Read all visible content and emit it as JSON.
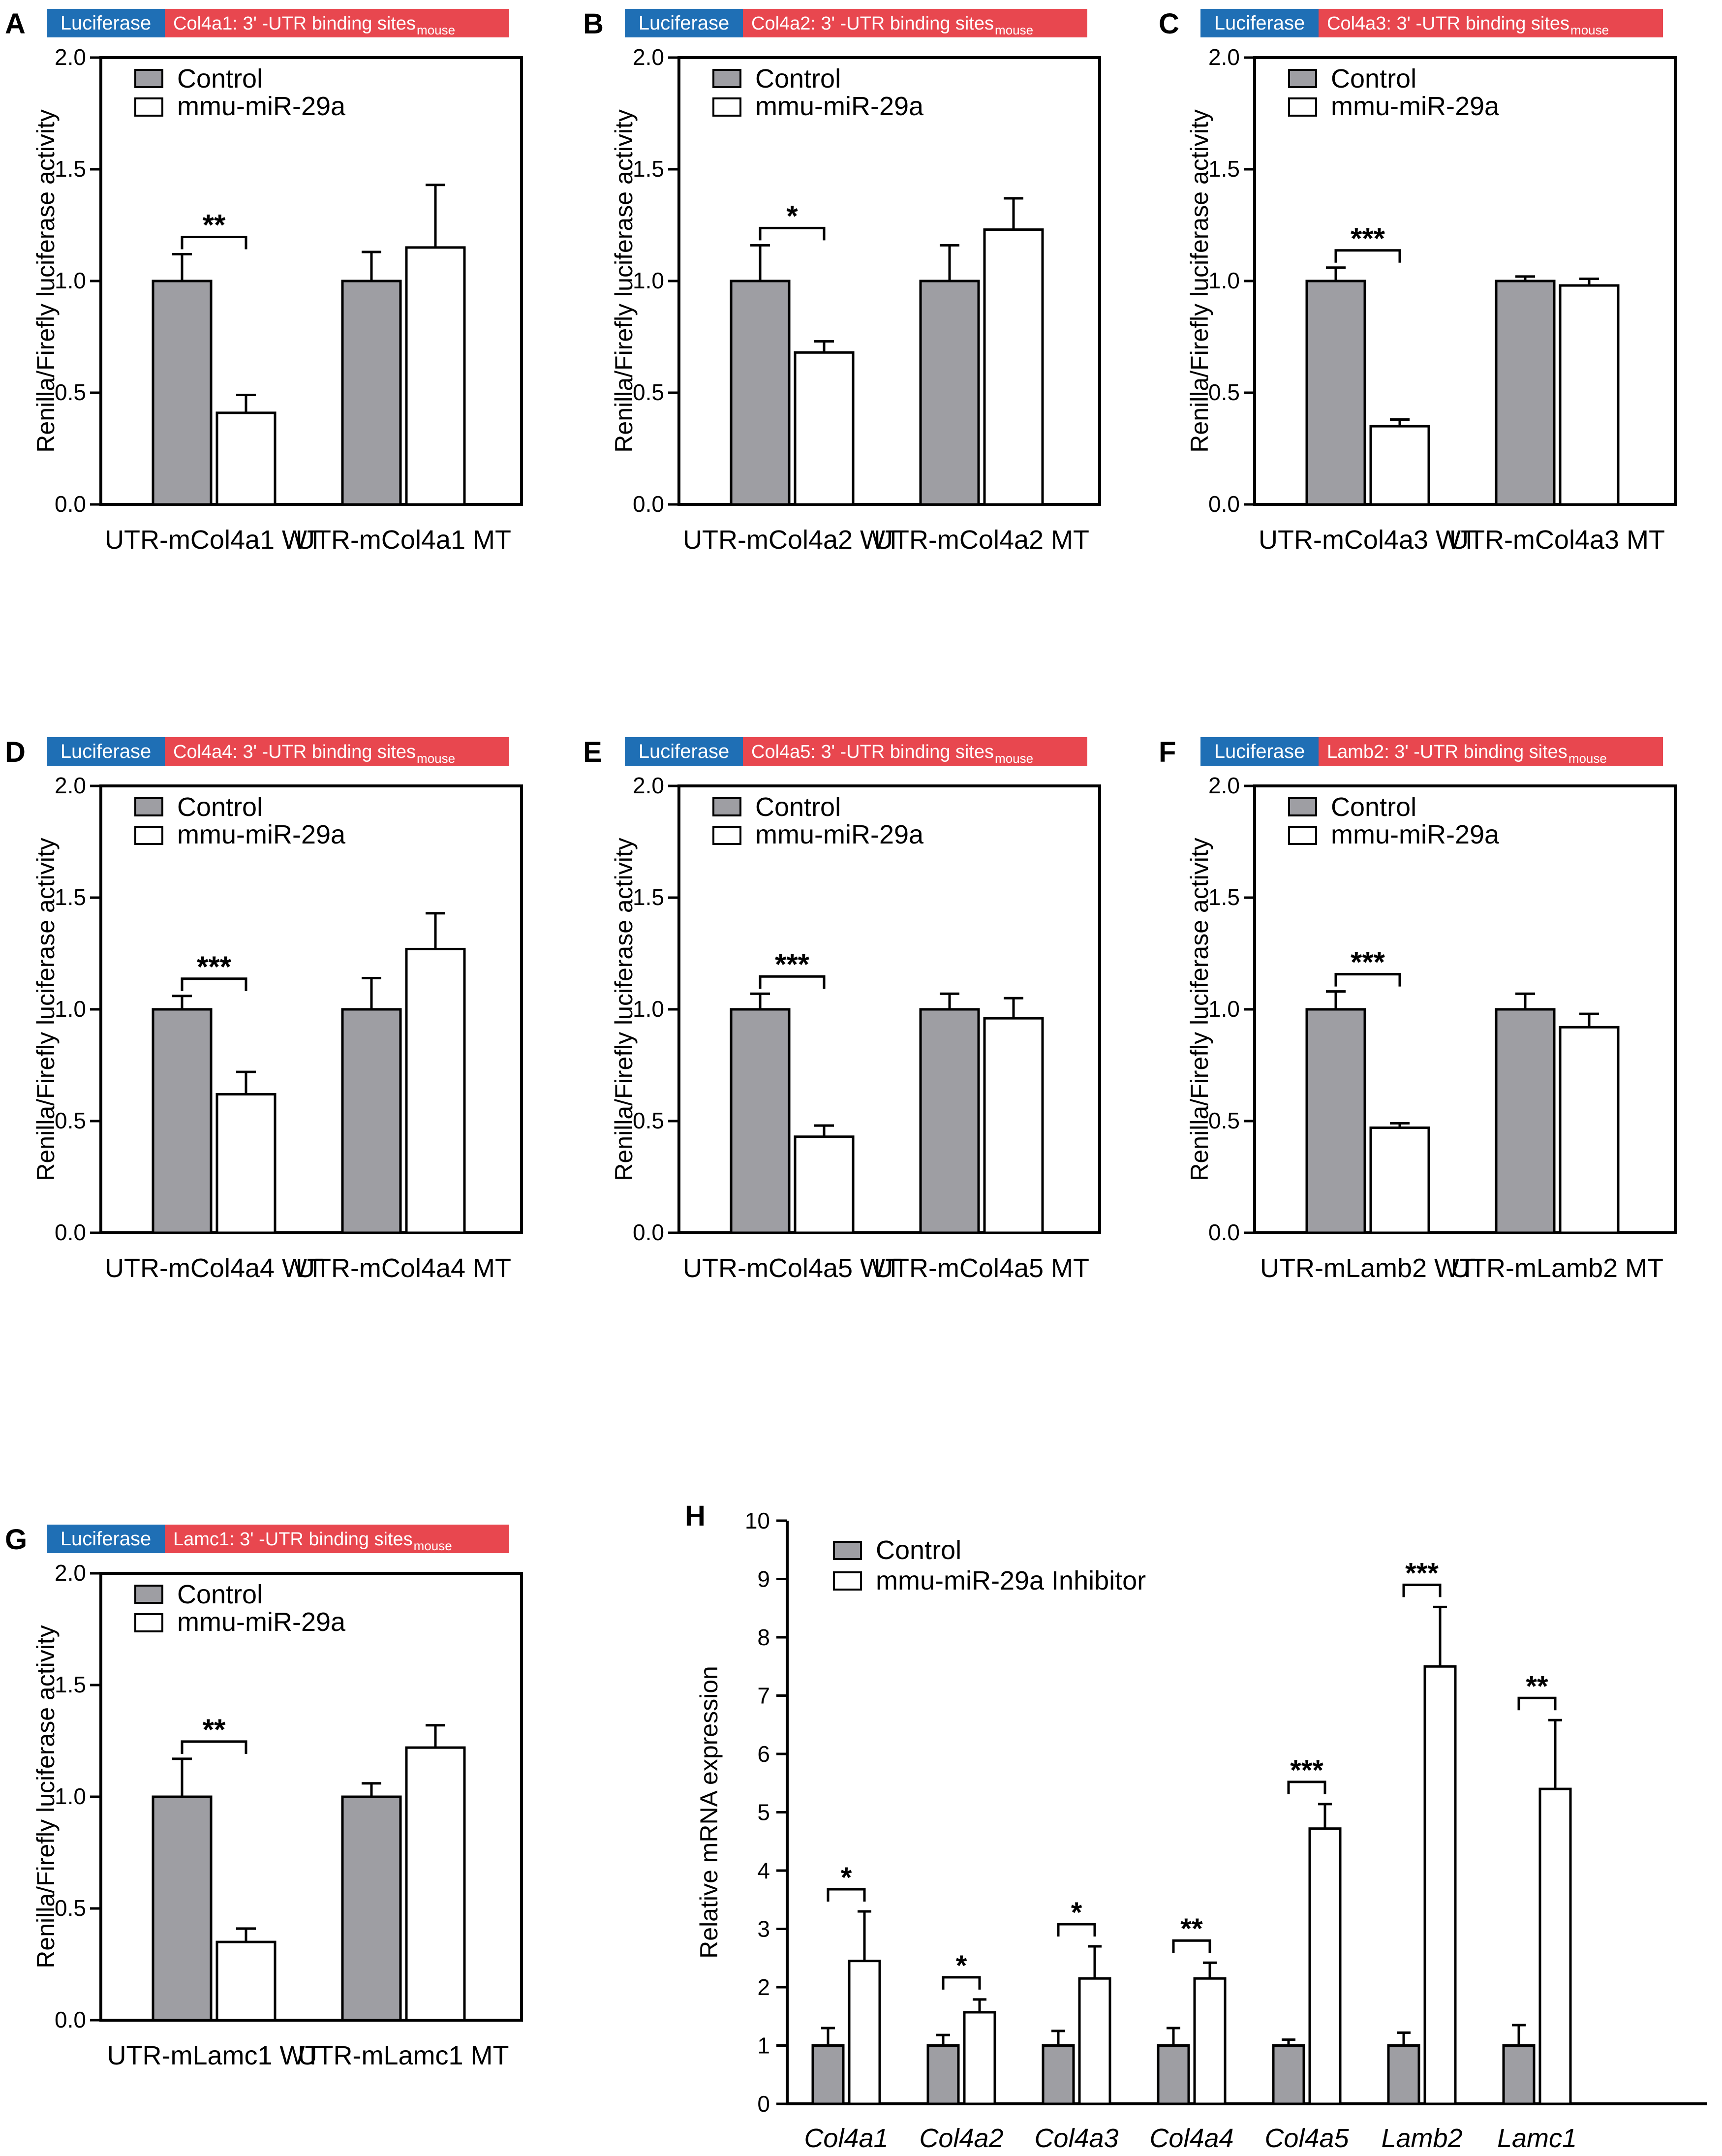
{
  "panels": [
    {
      "letter": "A",
      "header": {
        "luciferase": "Luciferase",
        "target": "Col4a1: 3' -UTR binding sites",
        "species": "mouse"
      }
    },
    {
      "letter": "B",
      "header": {
        "luciferase": "Luciferase",
        "target": "Col4a2: 3' -UTR binding sites",
        "species": "mouse"
      }
    },
    {
      "letter": "C",
      "header": {
        "luciferase": "Luciferase",
        "target": "Col4a3: 3' -UTR binding sites",
        "species": "mouse"
      }
    },
    {
      "letter": "D",
      "header": {
        "luciferase": "Luciferase",
        "target": "Col4a4: 3' -UTR binding sites",
        "species": "mouse"
      }
    },
    {
      "letter": "E",
      "header": {
        "luciferase": "Luciferase",
        "target": "Col4a5: 3' -UTR binding sites",
        "species": "mouse"
      }
    },
    {
      "letter": "F",
      "header": {
        "luciferase": "Luciferase",
        "target": "Lamb2: 3' -UTR binding sites",
        "species": "mouse"
      }
    },
    {
      "letter": "G",
      "header": {
        "luciferase": "Luciferase",
        "target": "Lamc1: 3' -UTR binding sites",
        "species": "mouse"
      }
    },
    {
      "letter": "H",
      "header": null
    }
  ],
  "colors": {
    "control": "#9e9ea3",
    "treatment": "#ffffff",
    "luciferase_box": "#1f6fb5",
    "target_box": "#e8474f",
    "text": "#000000"
  },
  "chart_data": [
    {
      "panel": "A",
      "type": "bar",
      "ylabel": "Renilla/Firefly luciferase activity",
      "ylim": [
        0,
        2.0
      ],
      "yticks": [
        "0.0",
        "0.5",
        "1.0",
        "1.5",
        "2.0"
      ],
      "categories": [
        "UTR-mCol4a1 WT",
        "UTR-mCol4a1 MT"
      ],
      "series": [
        {
          "name": "Control",
          "values": [
            1.0,
            1.0
          ],
          "errors": [
            0.12,
            0.13
          ]
        },
        {
          "name": "mmu-miR-29a",
          "values": [
            0.41,
            1.15
          ],
          "errors": [
            0.08,
            0.28
          ]
        }
      ],
      "significance": [
        "**",
        ""
      ]
    },
    {
      "panel": "B",
      "type": "bar",
      "ylabel": "Renilla/Firefly luciferase activity",
      "ylim": [
        0,
        2.0
      ],
      "yticks": [
        "0.0",
        "0.5",
        "1.0",
        "1.5",
        "2.0"
      ],
      "categories": [
        "UTR-mCol4a2 WT",
        "UTR-mCol4a2 MT"
      ],
      "series": [
        {
          "name": "Control",
          "values": [
            1.0,
            1.0
          ],
          "errors": [
            0.16,
            0.16
          ]
        },
        {
          "name": "mmu-miR-29a",
          "values": [
            0.68,
            1.23
          ],
          "errors": [
            0.05,
            0.14
          ]
        }
      ],
      "significance": [
        "*",
        ""
      ]
    },
    {
      "panel": "C",
      "type": "bar",
      "ylabel": "Renilla/Firefly luciferase activity",
      "ylim": [
        0,
        2.0
      ],
      "yticks": [
        "0.0",
        "0.5",
        "1.0",
        "1.5",
        "2.0"
      ],
      "categories": [
        "UTR-mCol4a3 WT",
        "UTR-mCol4a3 MT"
      ],
      "series": [
        {
          "name": "Control",
          "values": [
            1.0,
            1.0
          ],
          "errors": [
            0.06,
            0.02
          ]
        },
        {
          "name": "mmu-miR-29a",
          "values": [
            0.35,
            0.98
          ],
          "errors": [
            0.03,
            0.03
          ]
        }
      ],
      "significance": [
        "***",
        ""
      ]
    },
    {
      "panel": "D",
      "type": "bar",
      "ylabel": "Renilla/Firefly luciferase activity",
      "ylim": [
        0,
        2.0
      ],
      "yticks": [
        "0.0",
        "0.5",
        "1.0",
        "1.5",
        "2.0"
      ],
      "categories": [
        "UTR-mCol4a4 WT",
        "UTR-mCol4a4 MT"
      ],
      "series": [
        {
          "name": "Control",
          "values": [
            1.0,
            1.0
          ],
          "errors": [
            0.06,
            0.14
          ]
        },
        {
          "name": "mmu-miR-29a",
          "values": [
            0.62,
            1.27
          ],
          "errors": [
            0.1,
            0.16
          ]
        }
      ],
      "significance": [
        "***",
        ""
      ]
    },
    {
      "panel": "E",
      "type": "bar",
      "ylabel": "Renilla/Firefly luciferase activity",
      "ylim": [
        0,
        2.0
      ],
      "yticks": [
        "0.0",
        "0.5",
        "1.0",
        "1.5",
        "2.0"
      ],
      "categories": [
        "UTR-mCol4a5 WT",
        "UTR-mCol4a5 MT"
      ],
      "series": [
        {
          "name": "Control",
          "values": [
            1.0,
            1.0
          ],
          "errors": [
            0.07,
            0.07
          ]
        },
        {
          "name": "mmu-miR-29a",
          "values": [
            0.43,
            0.96
          ],
          "errors": [
            0.05,
            0.09
          ]
        }
      ],
      "significance": [
        "***",
        ""
      ]
    },
    {
      "panel": "F",
      "type": "bar",
      "ylabel": "Renilla/Firefly luciferase activity",
      "ylim": [
        0,
        2.0
      ],
      "yticks": [
        "0.0",
        "0.5",
        "1.0",
        "1.5",
        "2.0"
      ],
      "categories": [
        "UTR-mLamb2 WT",
        "UTR-mLamb2 MT"
      ],
      "series": [
        {
          "name": "Control",
          "values": [
            1.0,
            1.0
          ],
          "errors": [
            0.08,
            0.07
          ]
        },
        {
          "name": "mmu-miR-29a",
          "values": [
            0.47,
            0.92
          ],
          "errors": [
            0.02,
            0.06
          ]
        }
      ],
      "significance": [
        "***",
        ""
      ]
    },
    {
      "panel": "G",
      "type": "bar",
      "ylabel": "Renilla/Firefly luciferase activity",
      "ylim": [
        0,
        2.0
      ],
      "yticks": [
        "0.0",
        "0.5",
        "1.0",
        "1.5",
        "2.0"
      ],
      "categories": [
        "UTR-mLamc1 WT",
        "UTR-mLamc1 MT"
      ],
      "series": [
        {
          "name": "Control",
          "values": [
            1.0,
            1.0
          ],
          "errors": [
            0.17,
            0.06
          ]
        },
        {
          "name": "mmu-miR-29a",
          "values": [
            0.35,
            1.22
          ],
          "errors": [
            0.06,
            0.1
          ]
        }
      ],
      "significance": [
        "**",
        ""
      ]
    },
    {
      "panel": "H",
      "type": "bar",
      "ylabel": "Relative mRNA expression",
      "ylim": [
        0,
        10
      ],
      "yticks": [
        "0",
        "1",
        "2",
        "3",
        "4",
        "5",
        "6",
        "7",
        "8",
        "9",
        "10"
      ],
      "categories": [
        "Col4a1",
        "Col4a2",
        "Col4a3",
        "Col4a4",
        "Col4a5",
        "Lamb2",
        "Lamc1"
      ],
      "series": [
        {
          "name": "Control",
          "values": [
            1,
            1,
            1,
            1,
            1,
            1,
            1
          ],
          "errors": [
            0.3,
            0.18,
            0.25,
            0.3,
            0.1,
            0.22,
            0.35
          ]
        },
        {
          "name": "mmu-miR-29a Inhibitor",
          "values": [
            2.45,
            1.57,
            2.15,
            2.15,
            4.72,
            7.5,
            5.4
          ],
          "errors": [
            0.85,
            0.22,
            0.55,
            0.27,
            0.42,
            1.02,
            1.18
          ]
        }
      ],
      "significance": [
        "*",
        "*",
        "*",
        "**",
        "***",
        "***",
        "**"
      ]
    }
  ]
}
